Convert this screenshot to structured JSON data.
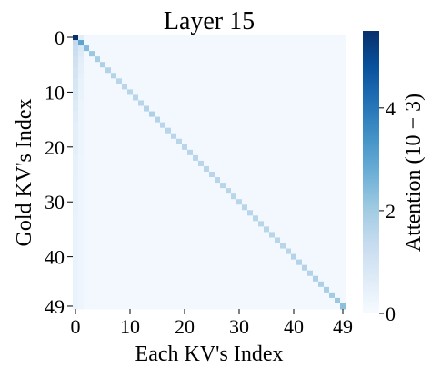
{
  "chart_data": {
    "type": "heatmap",
    "title": "Layer 15",
    "xlabel": "Each KV's Index",
    "ylabel": "Gold KV's Index",
    "n": 50,
    "x_ticks": [
      "0",
      "10",
      "20",
      "30",
      "40",
      "49"
    ],
    "y_ticks": [
      "0",
      "10",
      "20",
      "30",
      "40",
      "49"
    ],
    "x_tick_values": [
      0,
      10,
      20,
      30,
      40,
      49
    ],
    "y_tick_values": [
      0,
      10,
      20,
      30,
      40,
      49
    ],
    "colorbar": {
      "label": "Attention (10 − 3)",
      "ticks": [
        "0",
        "2",
        "4"
      ],
      "tick_values": [
        0,
        2,
        4
      ],
      "range": [
        0,
        5.5
      ],
      "colormap": "Blues"
    },
    "cells": {
      "background": 0.15,
      "diagonal": [
        5.5,
        3.0,
        2.4,
        2.1,
        1.9,
        1.8,
        1.7,
        1.7,
        1.6,
        1.6,
        1.6,
        1.6,
        1.6,
        1.7,
        1.8,
        1.7,
        1.6,
        1.6,
        1.6,
        1.6,
        1.6,
        1.6,
        1.6,
        1.6,
        1.6,
        1.6,
        1.6,
        1.6,
        1.6,
        1.6,
        1.6,
        1.6,
        1.6,
        1.6,
        1.6,
        1.6,
        1.6,
        1.6,
        1.6,
        1.6,
        1.7,
        1.7,
        1.7,
        1.7,
        1.8,
        1.8,
        1.9,
        2.0,
        2.1,
        2.3
      ],
      "first_column": [
        5.5,
        1.4,
        1.3,
        1.2,
        1.1,
        1.1,
        1.0,
        1.0,
        0.9,
        0.9,
        0.8,
        0.8,
        0.7,
        0.7,
        0.6,
        0.6,
        0.5,
        0.5,
        0.5,
        0.5,
        0.5,
        0.5,
        0.45,
        0.45,
        0.45,
        0.45,
        0.4,
        0.4,
        0.4,
        0.4,
        0.4,
        0.4,
        0.4,
        0.35,
        0.35,
        0.35,
        0.35,
        0.35,
        0.35,
        0.35,
        0.35,
        0.35,
        0.35,
        0.35,
        0.35,
        0.35,
        0.35,
        0.35,
        0.35,
        0.35
      ],
      "second_column": [
        0.6,
        1.0,
        0.8,
        0.7,
        0.6,
        0.5,
        0.5,
        0.45,
        0.4,
        0.4,
        0.35,
        0.35,
        0.3,
        0.3,
        0.3,
        0.3,
        0.3,
        0.3,
        0.3,
        0.3,
        0.3,
        0.3,
        0.25,
        0.25,
        0.25,
        0.25,
        0.25,
        0.25,
        0.25,
        0.25,
        0.25,
        0.25,
        0.25,
        0.25,
        0.25,
        0.25,
        0.25,
        0.25,
        0.25,
        0.25,
        0.25,
        0.25,
        0.25,
        0.25,
        0.25,
        0.25,
        0.25,
        0.25,
        0.25,
        0.25
      ]
    }
  }
}
